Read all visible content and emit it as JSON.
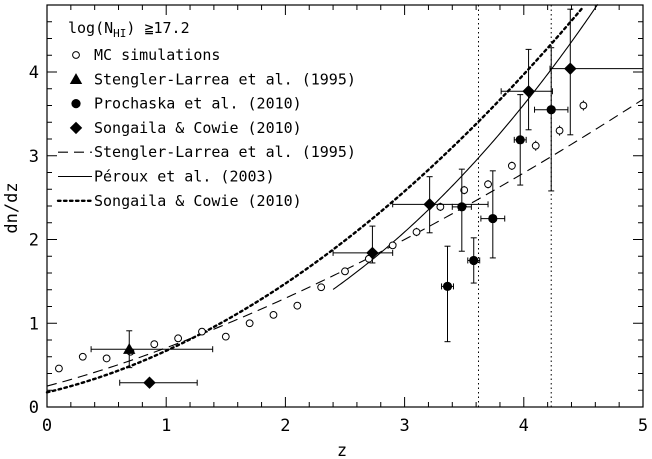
{
  "chart_data": {
    "type": "scatter",
    "xlabel": "z",
    "ylabel": "dn/dz",
    "xlim": [
      0,
      5
    ],
    "ylim": [
      0,
      4.8
    ],
    "x_ticks": [
      "0",
      "1",
      "2",
      "3",
      "4",
      "5"
    ],
    "y_ticks": [
      "0",
      "1",
      "2",
      "3",
      "4"
    ],
    "vertical_lines": [
      3.62,
      4.23
    ],
    "legend": {
      "title": "log(N",
      "title_sub": "HI",
      "title_rest": ") ≧17.2",
      "items": [
        "MC simulations",
        "Stengler-Larrea et al. (1995)",
        "Prochaska et al. (2010)",
        "Songaila & Cowie (2010)",
        "Stengler-Larrea et al. (1995)",
        "Péroux et al. (2003)",
        "Songaila & Cowie (2010)"
      ]
    },
    "series": [
      {
        "name": "MC simulations",
        "marker": "open-circle",
        "points": [
          {
            "x": 0.1,
            "y": 0.46,
            "yerr": 0.03
          },
          {
            "x": 0.3,
            "y": 0.6,
            "yerr": 0.03
          },
          {
            "x": 0.5,
            "y": 0.58,
            "yerr": 0.03
          },
          {
            "x": 0.7,
            "y": 0.66,
            "yerr": 0.03
          },
          {
            "x": 0.9,
            "y": 0.75,
            "yerr": 0.03
          },
          {
            "x": 1.1,
            "y": 0.82,
            "yerr": 0.03
          },
          {
            "x": 1.3,
            "y": 0.9,
            "yerr": 0.03
          },
          {
            "x": 1.5,
            "y": 0.84,
            "yerr": 0.03
          },
          {
            "x": 1.7,
            "y": 1.0,
            "yerr": 0.03
          },
          {
            "x": 1.9,
            "y": 1.1,
            "yerr": 0.03
          },
          {
            "x": 2.1,
            "y": 1.21,
            "yerr": 0.04
          },
          {
            "x": 2.3,
            "y": 1.43,
            "yerr": 0.04
          },
          {
            "x": 2.5,
            "y": 1.62,
            "yerr": 0.04
          },
          {
            "x": 2.7,
            "y": 1.77,
            "yerr": 0.04
          },
          {
            "x": 2.9,
            "y": 1.93,
            "yerr": 0.04
          },
          {
            "x": 3.1,
            "y": 2.09,
            "yerr": 0.05
          },
          {
            "x": 3.3,
            "y": 2.39,
            "yerr": 0.05
          },
          {
            "x": 3.5,
            "y": 2.59,
            "yerr": 0.05
          },
          {
            "x": 3.7,
            "y": 2.66,
            "yerr": 0.05
          },
          {
            "x": 3.9,
            "y": 2.88,
            "yerr": 0.05
          },
          {
            "x": 4.1,
            "y": 3.12,
            "yerr": 0.06
          },
          {
            "x": 4.3,
            "y": 3.3,
            "yerr": 0.06
          },
          {
            "x": 4.5,
            "y": 3.6,
            "yerr": 0.06
          }
        ]
      },
      {
        "name": "Stengler-Larrea et al. (1995)",
        "marker": "triangle",
        "points": [
          {
            "x": 0.69,
            "y": 0.69,
            "xerr": [
              0.32,
              0.7
            ],
            "yerr": [
              0.22,
              0.22
            ]
          }
        ]
      },
      {
        "name": "Prochaska et al. (2010)",
        "marker": "filled-circle",
        "points": [
          {
            "x": 3.36,
            "y": 1.44,
            "xerr": [
              0.05,
              0.05
            ],
            "yerr": [
              0.66,
              0.48
            ]
          },
          {
            "x": 3.48,
            "y": 2.39,
            "xerr": [
              0.08,
              0.08
            ],
            "yerr": [
              0.53,
              0.45
            ]
          },
          {
            "x": 3.58,
            "y": 1.75,
            "xerr": [
              0.05,
              0.05
            ],
            "yerr": [
              0.27,
              0.27
            ]
          },
          {
            "x": 3.74,
            "y": 2.25,
            "xerr": [
              0.1,
              0.1
            ],
            "yerr": [
              0.47,
              0.57
            ]
          },
          {
            "x": 3.97,
            "y": 3.19,
            "xerr": [
              0.05,
              0.05
            ],
            "yerr": [
              0.54,
              0.54
            ]
          },
          {
            "x": 4.23,
            "y": 3.55,
            "xerr": [
              0.14,
              0.14
            ],
            "yerr": [
              0.97,
              0.74
            ]
          }
        ]
      },
      {
        "name": "Songaila & Cowie (2010)",
        "marker": "diamond",
        "points": [
          {
            "x": 0.86,
            "y": 0.29,
            "xerr": [
              0.25,
              0.4
            ],
            "yerr": [
              0,
              0
            ]
          },
          {
            "x": 2.73,
            "y": 1.84,
            "xerr": [
              0.33,
              0.17
            ],
            "yerr": [
              0.12,
              0.32
            ]
          },
          {
            "x": 3.21,
            "y": 2.42,
            "xerr": [
              0.31,
              0.49
            ],
            "yerr": [
              0.34,
              0.33
            ]
          },
          {
            "x": 4.04,
            "y": 3.77,
            "xerr": [
              0.23,
              0.2
            ],
            "yerr": [
              0.46,
              0.5
            ]
          },
          {
            "x": 4.39,
            "y": 4.04,
            "xerr": [
              0.17,
              0.61
            ],
            "yerr": [
              0.79,
              0.71
            ]
          }
        ]
      }
    ],
    "curves": [
      {
        "name": "Stengler-Larrea et al. (1995)",
        "style": "dashed",
        "n0": 0.25,
        "gamma": 1.5
      },
      {
        "name": "Péroux et al. (2003)",
        "style": "solid",
        "z_min": 2.4,
        "z_max": 4.8,
        "n0": 0.07,
        "gamma": 2.45
      },
      {
        "name": "Songaila & Cowie (2010)",
        "style": "dotted",
        "n0": 0.175,
        "gamma": 1.94
      }
    ]
  }
}
